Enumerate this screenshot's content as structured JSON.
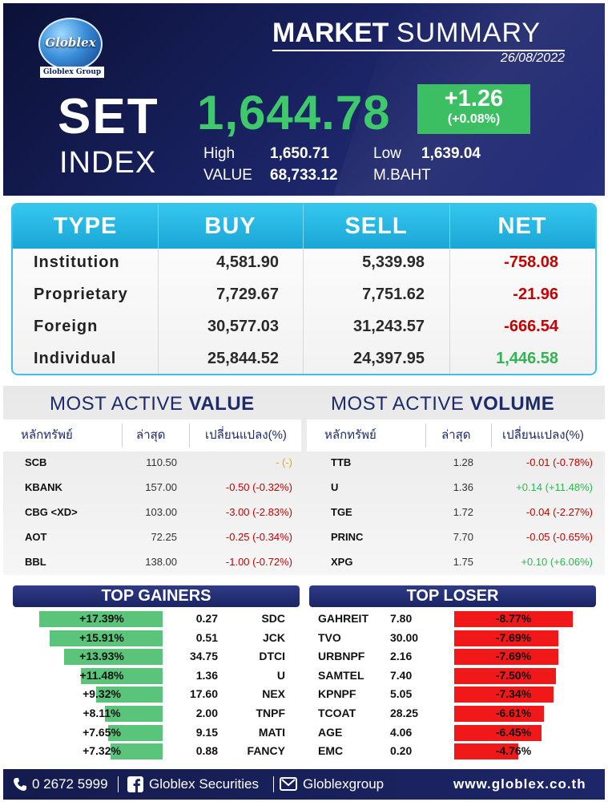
{
  "header": {
    "logo_text": "Globlex",
    "logo_sub": "Globlex Group",
    "title_bold": "MARKET",
    "title_rest": "SUMMARY",
    "date": "26/08/2022",
    "set_label": "SET",
    "index_label": "INDEX",
    "index_value": "1,644.78",
    "change": "+1.26",
    "change_pct": "(+0.08%)",
    "high_label": "High",
    "high_value": "1,650.71",
    "low_label": "Low",
    "low_value": "1,639.04",
    "value_label": "VALUE",
    "value_amount": "68,733.12",
    "value_unit": "M.BAHT",
    "colors": {
      "index_green": "#3ec96a",
      "change_box": "#3cbf63",
      "header_bg": "#1b2466"
    }
  },
  "investors": {
    "headers": [
      "TYPE",
      "BUY",
      "SELL",
      "NET"
    ],
    "rows": [
      {
        "type": "Institution",
        "buy": "4,581.90",
        "sell": "5,339.98",
        "net": "-758.08",
        "sign": "neg"
      },
      {
        "type": "Proprietary",
        "buy": "7,729.67",
        "sell": "7,751.62",
        "net": "-21.96",
        "sign": "neg"
      },
      {
        "type": "Foreign",
        "buy": "30,577.03",
        "sell": "31,243.57",
        "net": "-666.54",
        "sign": "neg"
      },
      {
        "type": "Individual",
        "buy": "25,844.52",
        "sell": "24,397.95",
        "net": "1,446.58",
        "sign": "pos"
      }
    ]
  },
  "most_active_value": {
    "title_light": "MOST ACTIVE",
    "title_bold": "VALUE",
    "headers": [
      "หลักทรัพย์",
      "ล่าสุด",
      "เปลี่ยนแปลง(%)"
    ],
    "rows": [
      {
        "symbol": "SCB",
        "last": "110.50",
        "change": "- (-)",
        "sign": "flat"
      },
      {
        "symbol": "KBANK",
        "last": "157.00",
        "change": "-0.50 (-0.32%)",
        "sign": "neg"
      },
      {
        "symbol": "CBG <XD>",
        "last": "103.00",
        "change": "-3.00 (-2.83%)",
        "sign": "neg"
      },
      {
        "symbol": "AOT",
        "last": "72.25",
        "change": "-0.25 (-0.34%)",
        "sign": "neg"
      },
      {
        "symbol": "BBL",
        "last": "138.00",
        "change": "-1.00 (-0.72%)",
        "sign": "neg"
      }
    ]
  },
  "most_active_volume": {
    "title_light": "MOST ACTIVE",
    "title_bold": "VOLUME",
    "headers": [
      "หลักทรัพย์",
      "ล่าสุด",
      "เปลี่ยนแปลง(%)"
    ],
    "rows": [
      {
        "symbol": "TTB",
        "last": "1.28",
        "change": "-0.01 (-0.78%)",
        "sign": "neg"
      },
      {
        "symbol": "U",
        "last": "1.36",
        "change": "+0.14 (+11.48%)",
        "sign": "pos"
      },
      {
        "symbol": "TGE",
        "last": "1.72",
        "change": "-0.04 (-2.27%)",
        "sign": "neg"
      },
      {
        "symbol": "PRINC",
        "last": "7.70",
        "change": "-0.05 (-0.65%)",
        "sign": "neg"
      },
      {
        "symbol": "XPG",
        "last": "1.75",
        "change": "+0.10 (+6.06%)",
        "sign": "pos"
      }
    ]
  },
  "top_gainers": {
    "title": "TOP GAINERS",
    "rows": [
      {
        "pct": "+17.39%",
        "pct_value": 17.39,
        "price": "0.27",
        "symbol": "SDC"
      },
      {
        "pct": "+15.91%",
        "pct_value": 15.91,
        "price": "0.51",
        "symbol": "JCK"
      },
      {
        "pct": "+13.93%",
        "pct_value": 13.93,
        "price": "34.75",
        "symbol": "DTCI"
      },
      {
        "pct": "+11.48%",
        "pct_value": 11.48,
        "price": "1.36",
        "symbol": "U"
      },
      {
        "pct": "+9.32%",
        "pct_value": 9.32,
        "price": "17.60",
        "symbol": "NEX"
      },
      {
        "pct": "+8.11%",
        "pct_value": 8.11,
        "price": "2.00",
        "symbol": "TNPF"
      },
      {
        "pct": "+7.65%",
        "pct_value": 7.65,
        "price": "9.15",
        "symbol": "MATI"
      },
      {
        "pct": "+7.32%",
        "pct_value": 7.32,
        "price": "0.88",
        "symbol": "FANCY"
      }
    ]
  },
  "top_loser": {
    "title": "TOP LOSER",
    "rows": [
      {
        "symbol": "GAHREIT",
        "price": "7.80",
        "pct": "-8.77%",
        "pct_value": 8.77
      },
      {
        "symbol": "TVO",
        "price": "30.00",
        "pct": "-7.69%",
        "pct_value": 7.69
      },
      {
        "symbol": "URBNPF",
        "price": "2.16",
        "pct": "-7.69%",
        "pct_value": 7.69
      },
      {
        "symbol": "SAMTEL",
        "price": "7.40",
        "pct": "-7.50%",
        "pct_value": 7.5
      },
      {
        "symbol": "KPNPF",
        "price": "5.05",
        "pct": "-7.34%",
        "pct_value": 7.34
      },
      {
        "symbol": "TCOAT",
        "price": "28.25",
        "pct": "-6.61%",
        "pct_value": 6.61
      },
      {
        "symbol": "AGE",
        "price": "4.06",
        "pct": "-6.45%",
        "pct_value": 6.45
      },
      {
        "symbol": "EMC",
        "price": "0.20",
        "pct": "-4.76%",
        "pct_value": 4.76
      }
    ]
  },
  "footer": {
    "phone": "0 2672 5999",
    "facebook": "Globlex Securities",
    "line": "Globlexgroup",
    "website": "www.globlex.co.th",
    "icons": [
      "phone-icon",
      "facebook-icon",
      "line-icon"
    ]
  }
}
